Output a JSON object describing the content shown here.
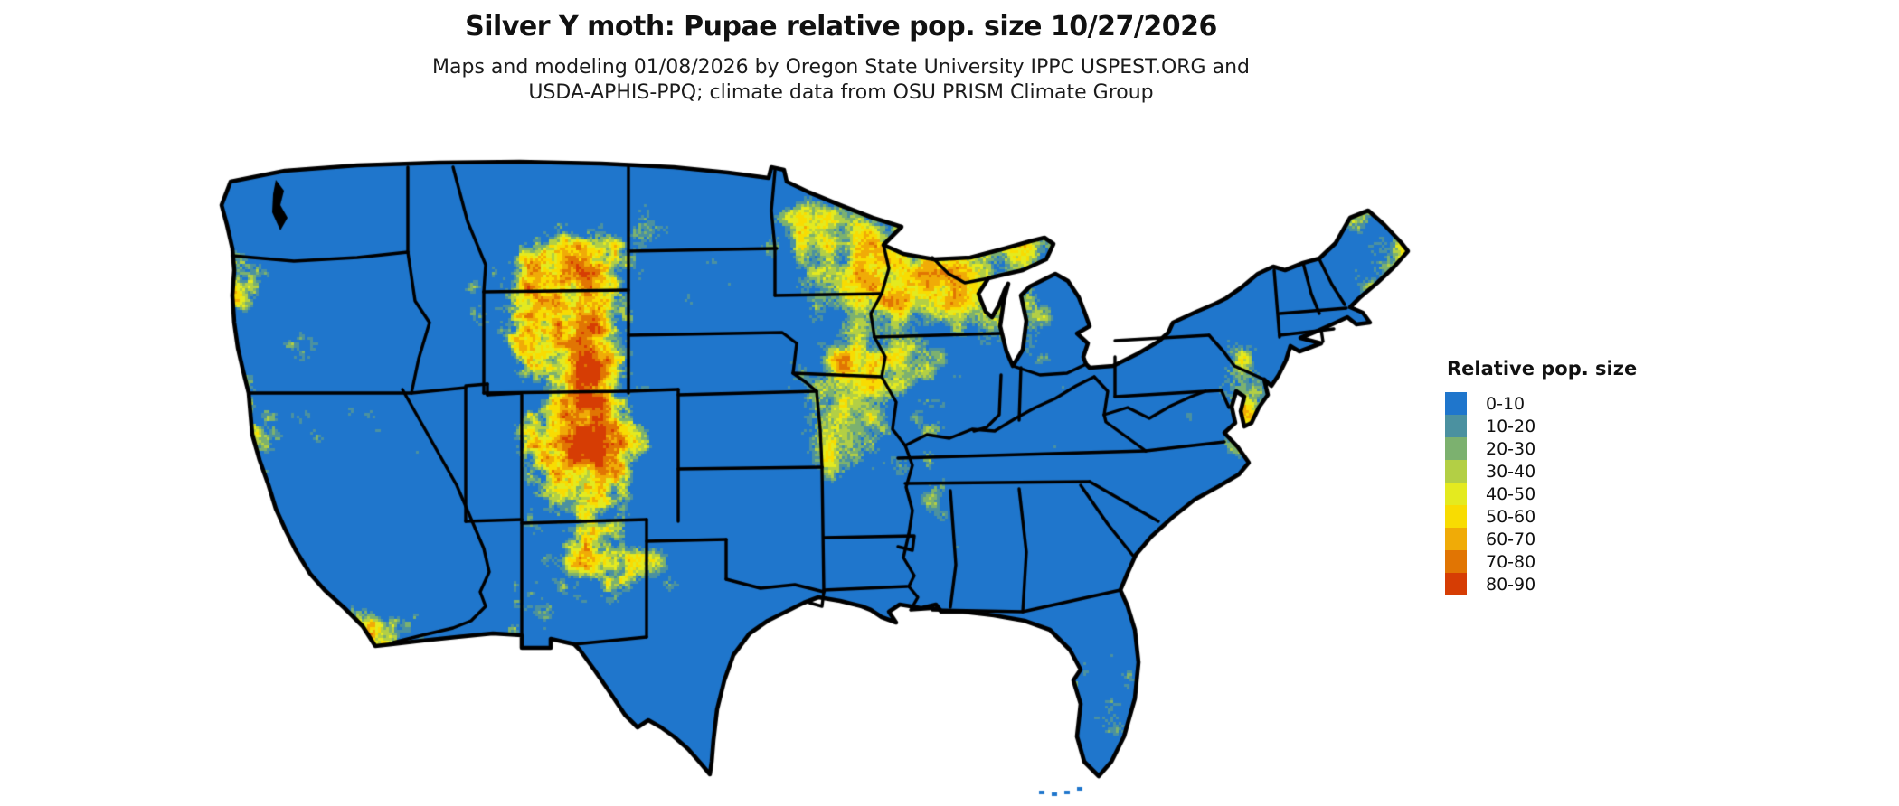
{
  "header": {
    "title": "Silver Y moth: Pupae relative pop. size 10/27/2026",
    "subtitle_line1": "Maps and modeling 01/08/2026 by Oregon State University IPPC USPEST.ORG and",
    "subtitle_line2": "USDA-APHIS-PPQ; climate data from OSU PRISM Climate Group"
  },
  "legend": {
    "title": "Relative pop. size",
    "items": [
      {
        "label": "0-10",
        "color": "#1F76CC"
      },
      {
        "label": "10-20",
        "color": "#4B91A0"
      },
      {
        "label": "20-30",
        "color": "#7CB16F"
      },
      {
        "label": "30-40",
        "color": "#B3CF45"
      },
      {
        "label": "40-50",
        "color": "#E4EA1F"
      },
      {
        "label": "50-60",
        "color": "#F8DC02"
      },
      {
        "label": "60-70",
        "color": "#F0AB07"
      },
      {
        "label": "70-80",
        "color": "#E17503"
      },
      {
        "label": "80-90",
        "color": "#D63D04"
      }
    ]
  },
  "map": {
    "region": "Continental United States",
    "no_data_color": "#FFFFFF",
    "state_border_color": "#000000"
  }
}
